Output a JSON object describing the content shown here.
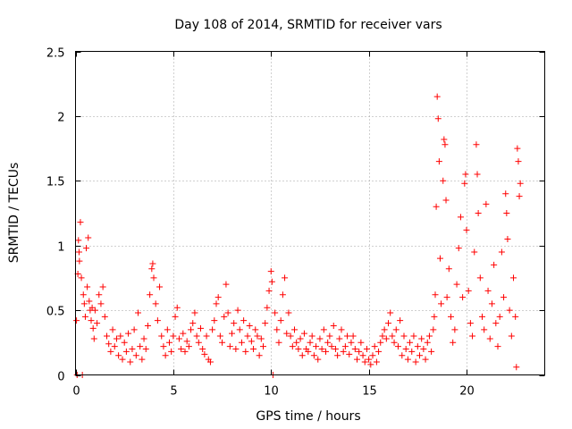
{
  "chart_data": {
    "type": "scatter",
    "title": "Day 108 of 2014, SRMTID for receiver vars",
    "xlabel": "GPS time / hours",
    "ylabel": "SRMTID / TECUs",
    "xlim": [
      0,
      24
    ],
    "ylim": [
      0,
      2.5
    ],
    "xticks": [
      0,
      5,
      10,
      15,
      20
    ],
    "xtick_labels": [
      "0",
      "5",
      "10",
      "15",
      "20"
    ],
    "yticks": [
      0,
      0.5,
      1,
      1.5,
      2,
      2.5
    ],
    "ytick_labels": [
      "0",
      "0.5",
      "1",
      "1.5",
      "2",
      "2.5"
    ],
    "grid": true,
    "marker": "plus",
    "color": "#ff0000",
    "series": [
      {
        "name": "SRMTID",
        "points": [
          [
            0.05,
            0.42
          ],
          [
            0.08,
            0.0
          ],
          [
            0.12,
            0.78
          ],
          [
            0.15,
            1.04
          ],
          [
            0.18,
            0.95
          ],
          [
            0.2,
            0.88
          ],
          [
            0.25,
            1.18
          ],
          [
            0.3,
            0.75
          ],
          [
            0.35,
            0.0
          ],
          [
            0.4,
            0.62
          ],
          [
            0.45,
            0.55
          ],
          [
            0.5,
            0.45
          ],
          [
            0.55,
            0.98
          ],
          [
            0.6,
            0.68
          ],
          [
            0.65,
            1.06
          ],
          [
            0.7,
            0.57
          ],
          [
            0.75,
            0.5
          ],
          [
            0.8,
            0.42
          ],
          [
            0.85,
            0.52
          ],
          [
            0.9,
            0.36
          ],
          [
            0.95,
            0.28
          ],
          [
            1.0,
            0.5
          ],
          [
            1.1,
            0.4
          ],
          [
            1.2,
            0.62
          ],
          [
            1.3,
            0.55
          ],
          [
            1.4,
            0.68
          ],
          [
            1.5,
            0.45
          ],
          [
            1.6,
            0.3
          ],
          [
            1.7,
            0.24
          ],
          [
            1.8,
            0.18
          ],
          [
            1.9,
            0.35
          ],
          [
            2.0,
            0.22
          ],
          [
            2.1,
            0.28
          ],
          [
            2.2,
            0.15
          ],
          [
            2.3,
            0.3
          ],
          [
            2.4,
            0.12
          ],
          [
            2.5,
            0.25
          ],
          [
            2.6,
            0.18
          ],
          [
            2.7,
            0.32
          ],
          [
            2.8,
            0.1
          ],
          [
            2.9,
            0.2
          ],
          [
            3.0,
            0.35
          ],
          [
            3.1,
            0.15
          ],
          [
            3.2,
            0.48
          ],
          [
            3.3,
            0.22
          ],
          [
            3.4,
            0.12
          ],
          [
            3.5,
            0.28
          ],
          [
            3.6,
            0.2
          ],
          [
            3.7,
            0.38
          ],
          [
            3.8,
            0.62
          ],
          [
            3.9,
            0.82
          ],
          [
            3.95,
            0.86
          ],
          [
            4.0,
            0.75
          ],
          [
            4.1,
            0.55
          ],
          [
            4.2,
            0.42
          ],
          [
            4.3,
            0.68
          ],
          [
            4.4,
            0.3
          ],
          [
            4.5,
            0.22
          ],
          [
            4.6,
            0.15
          ],
          [
            4.7,
            0.35
          ],
          [
            4.8,
            0.25
          ],
          [
            4.9,
            0.18
          ],
          [
            5.0,
            0.3
          ],
          [
            5.1,
            0.45
          ],
          [
            5.2,
            0.52
          ],
          [
            5.3,
            0.28
          ],
          [
            5.4,
            0.2
          ],
          [
            5.5,
            0.32
          ],
          [
            5.6,
            0.18
          ],
          [
            5.7,
            0.26
          ],
          [
            5.8,
            0.22
          ],
          [
            5.9,
            0.35
          ],
          [
            6.0,
            0.4
          ],
          [
            6.1,
            0.48
          ],
          [
            6.2,
            0.3
          ],
          [
            6.3,
            0.25
          ],
          [
            6.4,
            0.36
          ],
          [
            6.5,
            0.2
          ],
          [
            6.6,
            0.16
          ],
          [
            6.7,
            0.3
          ],
          [
            6.8,
            0.12
          ],
          [
            6.9,
            0.1
          ],
          [
            7.0,
            0.35
          ],
          [
            7.1,
            0.42
          ],
          [
            7.2,
            0.55
          ],
          [
            7.3,
            0.6
          ],
          [
            7.4,
            0.3
          ],
          [
            7.5,
            0.25
          ],
          [
            7.6,
            0.45
          ],
          [
            7.7,
            0.7
          ],
          [
            7.8,
            0.48
          ],
          [
            7.9,
            0.22
          ],
          [
            8.0,
            0.32
          ],
          [
            8.1,
            0.4
          ],
          [
            8.2,
            0.2
          ],
          [
            8.3,
            0.5
          ],
          [
            8.4,
            0.35
          ],
          [
            8.5,
            0.25
          ],
          [
            8.6,
            0.42
          ],
          [
            8.7,
            0.18
          ],
          [
            8.8,
            0.3
          ],
          [
            8.9,
            0.38
          ],
          [
            9.0,
            0.26
          ],
          [
            9.1,
            0.2
          ],
          [
            9.2,
            0.35
          ],
          [
            9.3,
            0.3
          ],
          [
            9.4,
            0.15
          ],
          [
            9.5,
            0.28
          ],
          [
            9.6,
            0.22
          ],
          [
            9.7,
            0.4
          ],
          [
            9.8,
            0.52
          ],
          [
            9.9,
            0.65
          ],
          [
            10.0,
            0.8
          ],
          [
            10.05,
            0.72
          ],
          [
            10.1,
            0.0
          ],
          [
            10.2,
            0.48
          ],
          [
            10.3,
            0.35
          ],
          [
            10.4,
            0.25
          ],
          [
            10.5,
            0.42
          ],
          [
            10.6,
            0.62
          ],
          [
            10.7,
            0.75
          ],
          [
            10.8,
            0.32
          ],
          [
            10.9,
            0.48
          ],
          [
            11.0,
            0.3
          ],
          [
            11.1,
            0.22
          ],
          [
            11.2,
            0.35
          ],
          [
            11.3,
            0.25
          ],
          [
            11.4,
            0.2
          ],
          [
            11.5,
            0.28
          ],
          [
            11.6,
            0.15
          ],
          [
            11.7,
            0.32
          ],
          [
            11.8,
            0.2
          ],
          [
            11.9,
            0.18
          ],
          [
            12.0,
            0.25
          ],
          [
            12.1,
            0.3
          ],
          [
            12.2,
            0.15
          ],
          [
            12.3,
            0.22
          ],
          [
            12.4,
            0.12
          ],
          [
            12.5,
            0.28
          ],
          [
            12.6,
            0.2
          ],
          [
            12.7,
            0.35
          ],
          [
            12.8,
            0.18
          ],
          [
            12.9,
            0.25
          ],
          [
            13.0,
            0.3
          ],
          [
            13.1,
            0.22
          ],
          [
            13.2,
            0.38
          ],
          [
            13.3,
            0.2
          ],
          [
            13.4,
            0.15
          ],
          [
            13.5,
            0.28
          ],
          [
            13.6,
            0.35
          ],
          [
            13.7,
            0.18
          ],
          [
            13.8,
            0.22
          ],
          [
            13.9,
            0.3
          ],
          [
            14.0,
            0.16
          ],
          [
            14.1,
            0.25
          ],
          [
            14.2,
            0.3
          ],
          [
            14.3,
            0.2
          ],
          [
            14.4,
            0.12
          ],
          [
            14.5,
            0.18
          ],
          [
            14.6,
            0.25
          ],
          [
            14.7,
            0.15
          ],
          [
            14.8,
            0.1
          ],
          [
            14.9,
            0.2
          ],
          [
            15.0,
            0.12
          ],
          [
            15.1,
            0.08
          ],
          [
            15.2,
            0.15
          ],
          [
            15.3,
            0.22
          ],
          [
            15.4,
            0.1
          ],
          [
            15.5,
            0.18
          ],
          [
            15.6,
            0.25
          ],
          [
            15.7,
            0.3
          ],
          [
            15.8,
            0.35
          ],
          [
            15.9,
            0.28
          ],
          [
            16.0,
            0.4
          ],
          [
            16.1,
            0.48
          ],
          [
            16.2,
            0.3
          ],
          [
            16.3,
            0.25
          ],
          [
            16.4,
            0.35
          ],
          [
            16.5,
            0.22
          ],
          [
            16.6,
            0.42
          ],
          [
            16.7,
            0.15
          ],
          [
            16.8,
            0.3
          ],
          [
            16.9,
            0.2
          ],
          [
            17.0,
            0.12
          ],
          [
            17.1,
            0.25
          ],
          [
            17.2,
            0.18
          ],
          [
            17.3,
            0.3
          ],
          [
            17.4,
            0.1
          ],
          [
            17.5,
            0.22
          ],
          [
            17.6,
            0.15
          ],
          [
            17.7,
            0.28
          ],
          [
            17.8,
            0.2
          ],
          [
            17.9,
            0.12
          ],
          [
            18.0,
            0.25
          ],
          [
            18.1,
            0.3
          ],
          [
            18.2,
            0.18
          ],
          [
            18.3,
            0.35
          ],
          [
            18.35,
            0.45
          ],
          [
            18.4,
            0.62
          ],
          [
            18.45,
            1.3
          ],
          [
            18.5,
            2.15
          ],
          [
            18.55,
            1.98
          ],
          [
            18.6,
            1.65
          ],
          [
            18.65,
            0.9
          ],
          [
            18.7,
            0.55
          ],
          [
            18.8,
            1.5
          ],
          [
            18.85,
            1.82
          ],
          [
            18.9,
            1.78
          ],
          [
            18.95,
            1.35
          ],
          [
            19.0,
            0.6
          ],
          [
            19.1,
            0.82
          ],
          [
            19.2,
            0.45
          ],
          [
            19.3,
            0.25
          ],
          [
            19.4,
            0.35
          ],
          [
            19.5,
            0.7
          ],
          [
            19.6,
            0.98
          ],
          [
            19.7,
            1.22
          ],
          [
            19.8,
            0.6
          ],
          [
            19.9,
            1.48
          ],
          [
            19.95,
            1.55
          ],
          [
            20.0,
            1.12
          ],
          [
            20.1,
            0.65
          ],
          [
            20.2,
            0.4
          ],
          [
            20.3,
            0.3
          ],
          [
            20.4,
            0.95
          ],
          [
            20.5,
            1.78
          ],
          [
            20.55,
            1.55
          ],
          [
            20.6,
            1.25
          ],
          [
            20.7,
            0.75
          ],
          [
            20.8,
            0.45
          ],
          [
            20.9,
            0.35
          ],
          [
            21.0,
            1.32
          ],
          [
            21.1,
            0.65
          ],
          [
            21.2,
            0.28
          ],
          [
            21.3,
            0.55
          ],
          [
            21.4,
            0.85
          ],
          [
            21.5,
            0.4
          ],
          [
            21.6,
            0.22
          ],
          [
            21.7,
            0.45
          ],
          [
            21.8,
            0.95
          ],
          [
            21.9,
            0.6
          ],
          [
            22.0,
            1.4
          ],
          [
            22.05,
            1.25
          ],
          [
            22.1,
            1.05
          ],
          [
            22.2,
            0.5
          ],
          [
            22.3,
            0.3
          ],
          [
            22.4,
            0.75
          ],
          [
            22.5,
            0.45
          ],
          [
            22.55,
            0.06
          ],
          [
            22.6,
            1.75
          ],
          [
            22.65,
            1.65
          ],
          [
            22.7,
            1.38
          ],
          [
            22.75,
            1.48
          ]
        ]
      }
    ]
  }
}
